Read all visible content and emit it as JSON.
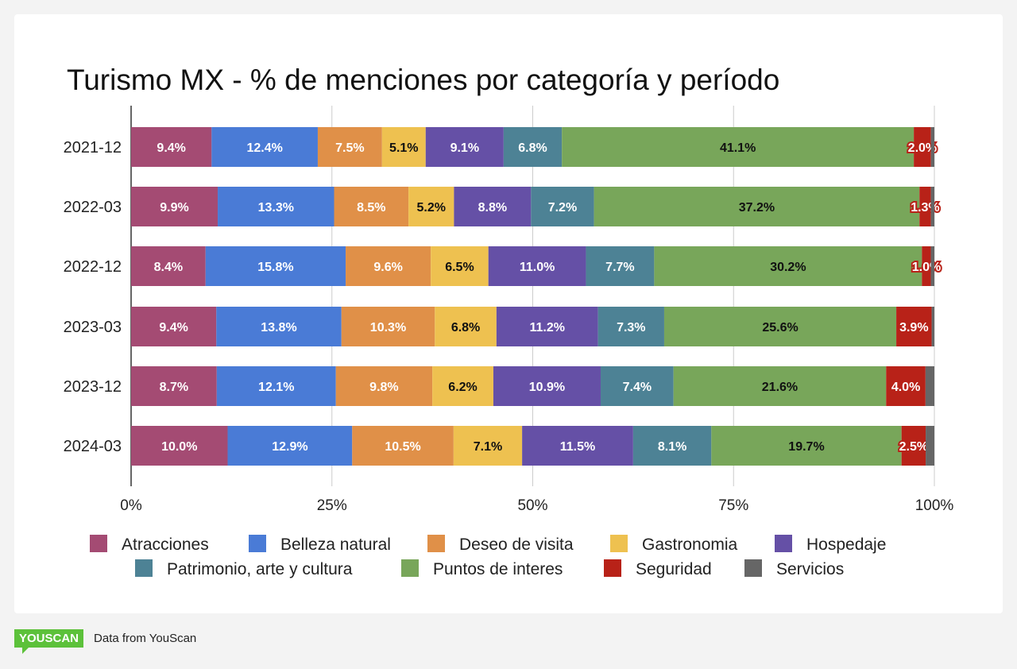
{
  "chart_data": {
    "type": "bar",
    "orientation": "horizontal",
    "stacked": "percent",
    "title": "Turismo MX - % de menciones por categoría y período",
    "categories": [
      "2021-12",
      "2022-03",
      "2022-12",
      "2023-03",
      "2023-12",
      "2024-03"
    ],
    "series": [
      {
        "name": "Atracciones",
        "color": "#a44b73",
        "values": [
          9.4,
          9.9,
          8.4,
          9.4,
          8.7,
          10.0
        ]
      },
      {
        "name": "Belleza natural",
        "color": "#4a7bd6",
        "values": [
          12.4,
          13.3,
          15.8,
          13.8,
          12.1,
          12.9
        ]
      },
      {
        "name": "Deseo de visita",
        "color": "#e09048",
        "values": [
          7.5,
          8.5,
          9.6,
          10.3,
          9.8,
          10.5
        ]
      },
      {
        "name": "Gastronomia",
        "color": "#eec150",
        "values": [
          5.1,
          5.2,
          6.5,
          6.8,
          6.2,
          7.1
        ]
      },
      {
        "name": "Hospedaje",
        "color": "#6550a6",
        "values": [
          9.1,
          8.8,
          11.0,
          11.2,
          10.9,
          11.5
        ]
      },
      {
        "name": "Patrimonio, arte y cultura",
        "color": "#4d8295",
        "values": [
          6.8,
          7.2,
          7.7,
          7.3,
          7.4,
          8.1
        ]
      },
      {
        "name": "Puntos de interes",
        "color": "#78a65a",
        "values": [
          41.1,
          37.2,
          30.2,
          25.6,
          21.6,
          19.7
        ]
      },
      {
        "name": "Seguridad",
        "color": "#b82218",
        "values": [
          2.0,
          1.3,
          1.0,
          3.9,
          4.0,
          2.5
        ]
      },
      {
        "name": "Servicios",
        "color": "#666666",
        "values": [
          0.4,
          0.4,
          0.4,
          0.3,
          0.9,
          0.9
        ],
        "labels_shown": false
      }
    ],
    "xticks": [
      "0%",
      "25%",
      "50%",
      "75%",
      "100%"
    ],
    "xlim": [
      0,
      100
    ],
    "grid": true,
    "legend": "bottom"
  },
  "footer": {
    "logo": "YOUSCAN",
    "source": "Data from YouScan"
  }
}
